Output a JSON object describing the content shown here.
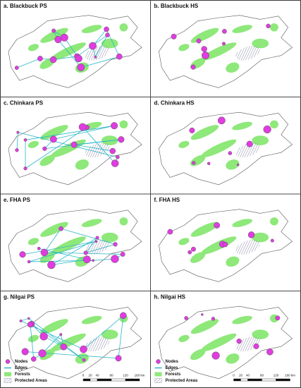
{
  "panels": [
    {
      "label": "a. Blackbuck PS"
    },
    {
      "label": "b. Blackbuck HS"
    },
    {
      "label": "c. Chinkara PS"
    },
    {
      "label": "d. Chinkara HS"
    },
    {
      "label": "e. FHA PS"
    },
    {
      "label": "f. FHA HS"
    },
    {
      "label": "g. Nilgai PS"
    },
    {
      "label": "h. Nilgai HS"
    }
  ],
  "legend": {
    "items": [
      "Nodes",
      "Edges",
      "Forests",
      "Protected Areas"
    ]
  },
  "scale_bar": {
    "labels": [
      "0",
      "20",
      "40",
      "80",
      "120",
      "160 km"
    ]
  }
}
